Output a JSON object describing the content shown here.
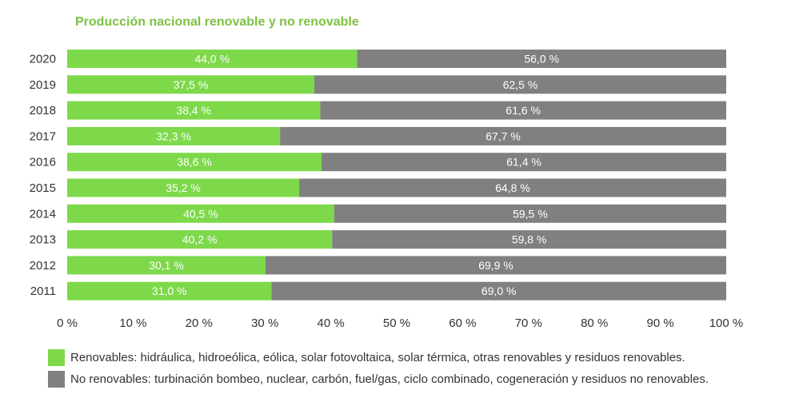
{
  "chart_data": {
    "type": "bar",
    "orientation": "horizontal",
    "stacked": true,
    "title": "Producción nacional renovable y no renovable",
    "categories": [
      "2020",
      "2019",
      "2018",
      "2017",
      "2016",
      "2015",
      "2014",
      "2013",
      "2012",
      "2011"
    ],
    "series": [
      {
        "name": "Renovables: hidráulica, hidroeólica, eólica, solar fotovoltaica, solar térmica, otras renovables y residuos renovables.",
        "color": "#7dd94a",
        "values": [
          44.0,
          37.5,
          38.4,
          32.3,
          38.6,
          35.2,
          40.5,
          40.2,
          30.1,
          31.0
        ],
        "labels": [
          "44,0 %",
          "37,5 %",
          "38,4 %",
          "32,3 %",
          "38,6 %",
          "35,2 %",
          "40,5 %",
          "40,2 %",
          "30,1 %",
          "31,0 %"
        ]
      },
      {
        "name": "No renovables: turbinación bombeo, nuclear, carbón, fuel/gas, ciclo combinado, cogeneración y residuos no renovables.",
        "color": "#808080",
        "values": [
          56.0,
          62.5,
          61.6,
          67.7,
          61.4,
          64.8,
          59.5,
          59.8,
          69.9,
          69.0
        ],
        "labels": [
          "56,0 %",
          "62,5 %",
          "61,6 %",
          "67,7 %",
          "61,4 %",
          "64,8 %",
          "59,5 %",
          "59,8 %",
          "69,9 %",
          "69,0 %"
        ]
      }
    ],
    "xlim": [
      0,
      100
    ],
    "xticks": [
      0,
      10,
      20,
      30,
      40,
      50,
      60,
      70,
      80,
      90,
      100
    ],
    "xtick_labels": [
      "0 %",
      "10 %",
      "20 %",
      "30 %",
      "40 %",
      "50 %",
      "60 %",
      "70 %",
      "80 %",
      "90 %",
      "100 %"
    ],
    "grid": false,
    "legend_position": "bottom"
  }
}
